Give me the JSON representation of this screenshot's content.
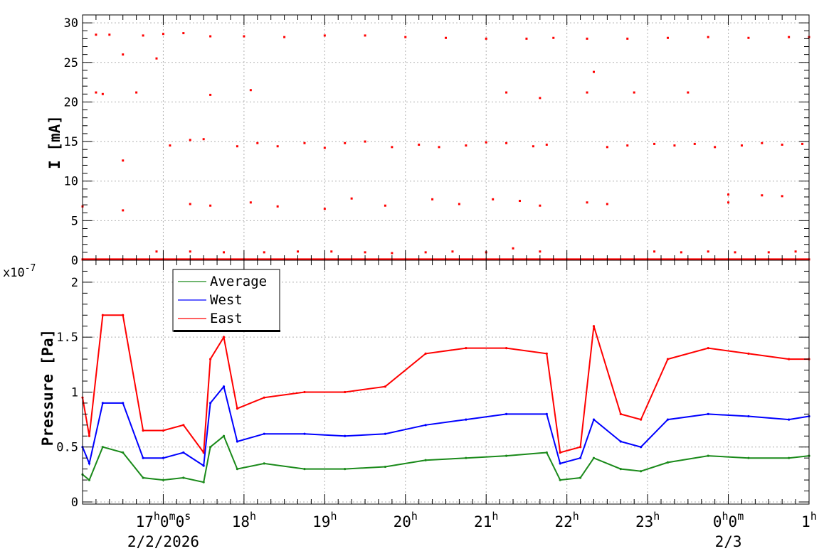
{
  "chart_data": [
    {
      "type": "scatter",
      "ylabel": "I [mA]",
      "ylim": [
        0,
        31
      ],
      "yticks": [
        0,
        5,
        10,
        15,
        20,
        25,
        30
      ],
      "grid": true,
      "series": [
        {
          "color": "#ff0000",
          "points": [
            [
              "16:10",
              28.5
            ],
            [
              "16:20",
              28.5
            ],
            [
              "16:30",
              26.0
            ],
            [
              "16:45",
              28.4
            ],
            [
              "17:00",
              28.6
            ],
            [
              "17:15",
              28.7
            ],
            [
              "17:35",
              28.3
            ],
            [
              "18:00",
              28.3
            ],
            [
              "18:30",
              28.2
            ],
            [
              "19:00",
              28.4
            ],
            [
              "19:30",
              28.4
            ],
            [
              "20:00",
              28.2
            ],
            [
              "20:30",
              28.1
            ],
            [
              "21:00",
              28.0
            ],
            [
              "21:30",
              28.0
            ],
            [
              "21:50",
              28.1
            ],
            [
              "22:15",
              28.0
            ],
            [
              "22:45",
              28.0
            ],
            [
              "23:15",
              28.1
            ],
            [
              "23:45",
              28.2
            ],
            [
              "00:15",
              28.1
            ],
            [
              "00:45",
              28.2
            ],
            [
              "01:00",
              28.2
            ],
            [
              "16:10",
              21.2
            ],
            [
              "16:15",
              21.0
            ],
            [
              "16:40",
              21.2
            ],
            [
              "17:35",
              20.9
            ],
            [
              "18:05",
              21.5
            ],
            [
              "21:15",
              21.2
            ],
            [
              "21:40",
              20.5
            ],
            [
              "22:15",
              21.2
            ],
            [
              "22:20",
              23.8
            ],
            [
              "22:50",
              21.2
            ],
            [
              "23:30",
              21.2
            ],
            [
              "16:55",
              25.5
            ],
            [
              "16:30",
              12.6
            ],
            [
              "17:05",
              14.5
            ],
            [
              "17:20",
              15.2
            ],
            [
              "17:30",
              15.3
            ],
            [
              "17:55",
              14.4
            ],
            [
              "18:10",
              14.8
            ],
            [
              "18:25",
              14.4
            ],
            [
              "18:45",
              14.8
            ],
            [
              "19:00",
              14.2
            ],
            [
              "19:15",
              14.8
            ],
            [
              "19:30",
              15.0
            ],
            [
              "19:50",
              14.3
            ],
            [
              "20:10",
              14.6
            ],
            [
              "20:25",
              14.3
            ],
            [
              "20:45",
              14.5
            ],
            [
              "21:00",
              14.9
            ],
            [
              "21:15",
              14.8
            ],
            [
              "21:35",
              14.4
            ],
            [
              "21:45",
              14.6
            ],
            [
              "22:30",
              14.3
            ],
            [
              "22:45",
              14.5
            ],
            [
              "23:05",
              14.7
            ],
            [
              "23:20",
              14.5
            ],
            [
              "23:35",
              14.7
            ],
            [
              "23:50",
              14.3
            ],
            [
              "00:10",
              14.5
            ],
            [
              "00:25",
              14.8
            ],
            [
              "00:40",
              14.6
            ],
            [
              "00:55",
              14.7
            ],
            [
              "16:00",
              6.8
            ],
            [
              "16:30",
              6.3
            ],
            [
              "17:20",
              7.1
            ],
            [
              "17:35",
              6.9
            ],
            [
              "18:05",
              7.3
            ],
            [
              "18:25",
              6.8
            ],
            [
              "19:00",
              6.5
            ],
            [
              "19:20",
              7.8
            ],
            [
              "19:45",
              6.9
            ],
            [
              "20:20",
              7.7
            ],
            [
              "20:40",
              7.1
            ],
            [
              "21:05",
              7.7
            ],
            [
              "21:25",
              7.5
            ],
            [
              "21:40",
              6.9
            ],
            [
              "22:15",
              7.3
            ],
            [
              "22:30",
              7.1
            ],
            [
              "00:00",
              8.3
            ],
            [
              "00:00",
              7.3
            ],
            [
              "00:25",
              8.2
            ],
            [
              "00:40",
              8.1
            ],
            [
              "16:00",
              0.1
            ],
            [
              "16:30",
              0.1
            ],
            [
              "17:00",
              0.1
            ],
            [
              "17:30",
              0.1
            ],
            [
              "18:00",
              0.1
            ],
            [
              "18:30",
              0.1
            ],
            [
              "19:00",
              0.1
            ],
            [
              "19:30",
              0.1
            ],
            [
              "20:00",
              0.1
            ],
            [
              "20:30",
              0.1
            ],
            [
              "21:00",
              0.1
            ],
            [
              "21:30",
              0.1
            ],
            [
              "22:00",
              0.1
            ],
            [
              "22:30",
              0.1
            ],
            [
              "23:00",
              0.1
            ],
            [
              "23:30",
              0.1
            ],
            [
              "00:00",
              0.1
            ],
            [
              "00:30",
              0.1
            ],
            [
              "01:00",
              0.1
            ],
            [
              "16:55",
              1.1
            ],
            [
              "17:20",
              1.1
            ],
            [
              "17:45",
              1.0
            ],
            [
              "18:15",
              1.0
            ],
            [
              "18:40",
              1.1
            ],
            [
              "19:05",
              1.1
            ],
            [
              "19:30",
              1.0
            ],
            [
              "19:50",
              0.9
            ],
            [
              "20:15",
              1.0
            ],
            [
              "20:35",
              1.1
            ],
            [
              "21:00",
              1.0
            ],
            [
              "21:20",
              1.5
            ],
            [
              "21:40",
              1.1
            ],
            [
              "23:05",
              1.1
            ],
            [
              "23:25",
              1.0
            ],
            [
              "23:45",
              1.1
            ],
            [
              "00:05",
              1.0
            ],
            [
              "00:30",
              1.0
            ],
            [
              "00:50",
              1.1
            ]
          ]
        }
      ]
    },
    {
      "type": "line",
      "ylabel": "Pressure [Pa]",
      "y_multiplier": "x10",
      "y_exponent": "-7",
      "ylim": [
        0,
        2.2
      ],
      "yticks": [
        "0",
        "0.5",
        "1",
        "1.5",
        "2"
      ],
      "grid": true,
      "legend": "top-left",
      "series": [
        {
          "name": "Average",
          "color": "#1a8a1a",
          "points": [
            [
              "16:00",
              0.25
            ],
            [
              "16:05",
              0.2
            ],
            [
              "16:15",
              0.5
            ],
            [
              "16:30",
              0.45
            ],
            [
              "16:45",
              0.22
            ],
            [
              "17:00",
              0.2
            ],
            [
              "17:15",
              0.22
            ],
            [
              "17:30",
              0.18
            ],
            [
              "17:35",
              0.5
            ],
            [
              "17:45",
              0.6
            ],
            [
              "17:55",
              0.3
            ],
            [
              "18:15",
              0.35
            ],
            [
              "18:45",
              0.3
            ],
            [
              "19:15",
              0.3
            ],
            [
              "19:45",
              0.32
            ],
            [
              "20:15",
              0.38
            ],
            [
              "20:45",
              0.4
            ],
            [
              "21:15",
              0.42
            ],
            [
              "21:45",
              0.45
            ],
            [
              "21:55",
              0.2
            ],
            [
              "22:10",
              0.22
            ],
            [
              "22:20",
              0.4
            ],
            [
              "22:40",
              0.3
            ],
            [
              "22:55",
              0.28
            ],
            [
              "23:15",
              0.36
            ],
            [
              "23:45",
              0.42
            ],
            [
              "00:15",
              0.4
            ],
            [
              "00:45",
              0.4
            ],
            [
              "01:00",
              0.42
            ]
          ]
        },
        {
          "name": "West",
          "color": "#0000ff",
          "points": [
            [
              "16:00",
              0.5
            ],
            [
              "16:05",
              0.35
            ],
            [
              "16:15",
              0.9
            ],
            [
              "16:30",
              0.9
            ],
            [
              "16:45",
              0.4
            ],
            [
              "17:00",
              0.4
            ],
            [
              "17:15",
              0.45
            ],
            [
              "17:30",
              0.33
            ],
            [
              "17:35",
              0.9
            ],
            [
              "17:45",
              1.05
            ],
            [
              "17:55",
              0.55
            ],
            [
              "18:15",
              0.62
            ],
            [
              "18:45",
              0.62
            ],
            [
              "19:15",
              0.6
            ],
            [
              "19:45",
              0.62
            ],
            [
              "20:15",
              0.7
            ],
            [
              "20:45",
              0.75
            ],
            [
              "21:15",
              0.8
            ],
            [
              "21:45",
              0.8
            ],
            [
              "21:55",
              0.35
            ],
            [
              "22:10",
              0.4
            ],
            [
              "22:20",
              0.75
            ],
            [
              "22:40",
              0.55
            ],
            [
              "22:55",
              0.5
            ],
            [
              "23:15",
              0.75
            ],
            [
              "23:45",
              0.8
            ],
            [
              "00:15",
              0.78
            ],
            [
              "00:45",
              0.75
            ],
            [
              "01:00",
              0.78
            ]
          ]
        },
        {
          "name": "East",
          "color": "#ff0000",
          "points": [
            [
              "16:00",
              0.95
            ],
            [
              "16:05",
              0.6
            ],
            [
              "16:15",
              1.7
            ],
            [
              "16:30",
              1.7
            ],
            [
              "16:45",
              0.65
            ],
            [
              "17:00",
              0.65
            ],
            [
              "17:15",
              0.7
            ],
            [
              "17:30",
              0.45
            ],
            [
              "17:35",
              1.3
            ],
            [
              "17:45",
              1.5
            ],
            [
              "17:55",
              0.85
            ],
            [
              "18:15",
              0.95
            ],
            [
              "18:45",
              1.0
            ],
            [
              "19:15",
              1.0
            ],
            [
              "19:45",
              1.05
            ],
            [
              "20:15",
              1.35
            ],
            [
              "20:45",
              1.4
            ],
            [
              "21:15",
              1.4
            ],
            [
              "21:45",
              1.35
            ],
            [
              "21:55",
              0.45
            ],
            [
              "22:10",
              0.5
            ],
            [
              "22:20",
              1.6
            ],
            [
              "22:40",
              0.8
            ],
            [
              "22:55",
              0.75
            ],
            [
              "23:15",
              1.3
            ],
            [
              "23:45",
              1.4
            ],
            [
              "00:15",
              1.35
            ],
            [
              "00:45",
              1.3
            ],
            [
              "01:00",
              1.3
            ]
          ]
        }
      ]
    }
  ],
  "x_axis": {
    "start": "16:00",
    "end": "01:00",
    "ticks": [
      {
        "t": "17:00",
        "main": "17",
        "sup1": "h",
        "mid": "0",
        "sup2": "m",
        "mid2": "0",
        "sup3": "s"
      },
      {
        "t": "18:00",
        "main": "18",
        "sup1": "h"
      },
      {
        "t": "19:00",
        "main": "19",
        "sup1": "h"
      },
      {
        "t": "20:00",
        "main": "20",
        "sup1": "h"
      },
      {
        "t": "21:00",
        "main": "21",
        "sup1": "h"
      },
      {
        "t": "22:00",
        "main": "22",
        "sup1": "h"
      },
      {
        "t": "23:00",
        "main": "23",
        "sup1": "h"
      },
      {
        "t": "00:00",
        "main": "0",
        "sup1": "h",
        "mid": "0",
        "sup2": "m"
      },
      {
        "t": "01:00",
        "main": "1",
        "sup1": "h"
      }
    ],
    "dates": [
      {
        "t": "17:00",
        "label": "2/2/2026"
      },
      {
        "t": "00:00",
        "label": "2/3"
      }
    ]
  }
}
